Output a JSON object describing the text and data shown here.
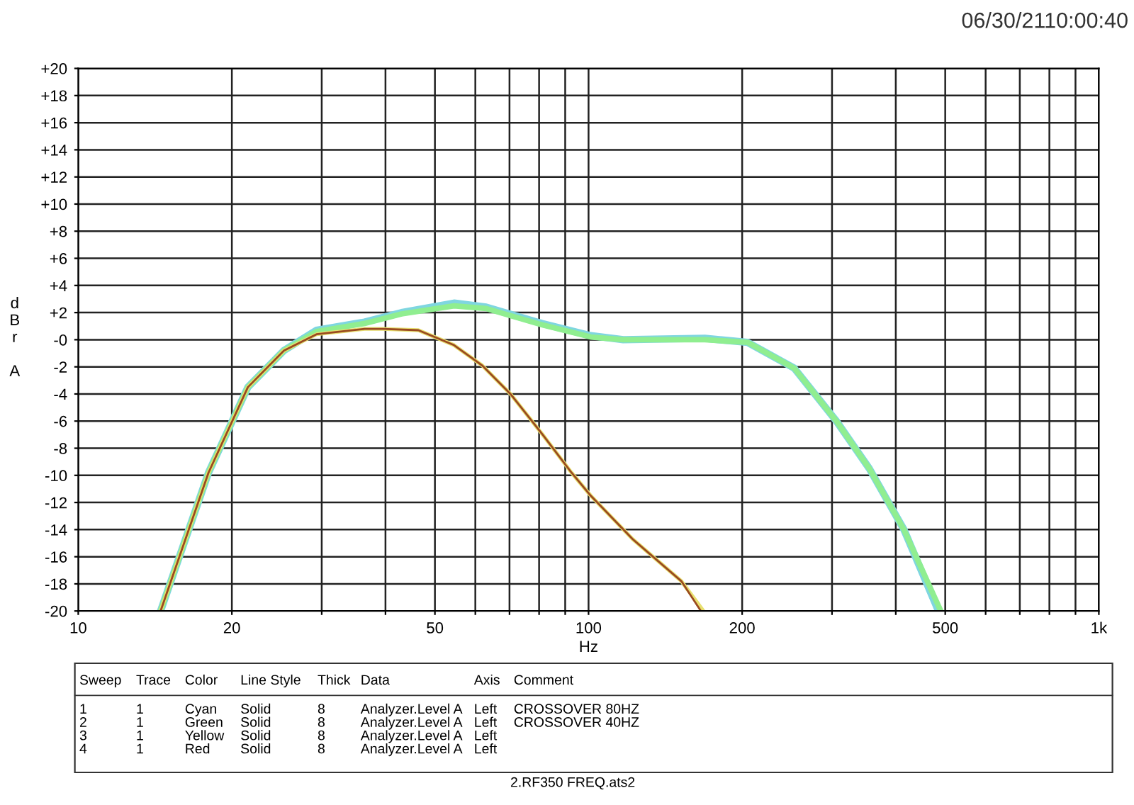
{
  "chart_data": {
    "type": "line",
    "xlabel": "Hz",
    "ylabel": "dBr A",
    "xlim": [
      10,
      1000
    ],
    "ylim": [
      -20,
      20
    ],
    "log": "x",
    "grid": true,
    "line_style": "solid",
    "xticks": [
      10,
      {
        "value": 20,
        "label": "20"
      },
      {
        "value": 30,
        "label": null
      },
      {
        "value": 40,
        "label": null
      },
      50,
      {
        "value": 60,
        "label": null
      },
      {
        "value": 70,
        "label": null
      },
      {
        "value": 80,
        "label": null
      },
      {
        "value": 90,
        "label": null
      },
      100,
      200,
      {
        "value": 300,
        "label": null
      },
      {
        "value": 400,
        "label": null
      },
      500,
      {
        "value": 600,
        "label": null
      },
      {
        "value": 700,
        "label": null
      },
      {
        "value": 800,
        "label": null
      },
      {
        "value": 900,
        "label": null
      },
      {
        "value": 1000,
        "label": "1k"
      }
    ],
    "yticks": [
      {
        "value": 20,
        "label": "+20"
      },
      {
        "value": 18,
        "label": "+18"
      },
      {
        "value": 16,
        "label": "+16"
      },
      {
        "value": 14,
        "label": "+14"
      },
      {
        "value": 12,
        "label": "+12"
      },
      {
        "value": 10,
        "label": "+10"
      },
      {
        "value": 8,
        "label": "+8"
      },
      {
        "value": 6,
        "label": "+6"
      },
      {
        "value": 4,
        "label": "+4"
      },
      {
        "value": 2,
        "label": "+2"
      },
      {
        "value": 0,
        "label": "-0"
      },
      -2,
      -4,
      -6,
      -8,
      -10,
      -12,
      -14,
      -16,
      -18,
      -20
    ],
    "series": [
      {
        "color": "#7fd6e0",
        "x": [
          14.5,
          18.0,
          21.5,
          25.3,
          29.3,
          36.4,
          43,
          54.5,
          63,
          81,
          101,
          117,
          169,
          205,
          253,
          306,
          355,
          415,
          485
        ],
        "values": [
          -20,
          -9.8,
          -3.5,
          -0.8,
          0.7,
          1.3,
          2.0,
          2.7,
          2.4,
          1.2,
          0.3,
          0,
          0.1,
          -0.2,
          -2.1,
          -6.0,
          -9.5,
          -14.0,
          -20
        ]
      },
      {
        "color": "#90ee90",
        "x": [
          14.5,
          18.0,
          21.5,
          25.3,
          29.3,
          36.4,
          43,
          54.5,
          63,
          81,
          101,
          117,
          169,
          205,
          253,
          306,
          355,
          415,
          490
        ],
        "values": [
          -20,
          -9.8,
          -3.5,
          -0.8,
          0.6,
          1.2,
          1.9,
          2.5,
          2.3,
          1.1,
          0.2,
          0,
          0,
          -0.2,
          -2.1,
          -6.0,
          -9.5,
          -14.0,
          -20
        ]
      },
      {
        "color": "#e8e070",
        "x": [
          14.5,
          18.0,
          21.5,
          25.3,
          29.3,
          36.4,
          39.5,
          46.4,
          54.5,
          61.9,
          70.3,
          81.3,
          92.6,
          101,
          122,
          152,
          168
        ],
        "values": [
          -20,
          -9.8,
          -3.5,
          -0.8,
          0.4,
          0.8,
          0.8,
          0.7,
          -0.4,
          -1.9,
          -4.0,
          -7.0,
          -9.8,
          -11.5,
          -14.7,
          -17.8,
          -20
        ]
      },
      {
        "color": "#9a4a20",
        "x": [
          14.5,
          18.0,
          21.5,
          25.3,
          29.3,
          36.4,
          39.5,
          46.4,
          54.5,
          61.9,
          70.3,
          81.3,
          92.6,
          101,
          122,
          152,
          166
        ],
        "values": [
          -20,
          -9.8,
          -3.5,
          -0.8,
          0.4,
          0.8,
          0.8,
          0.7,
          -0.4,
          -1.9,
          -4.0,
          -7.0,
          -9.8,
          -11.5,
          -14.7,
          -17.8,
          -20
        ]
      }
    ],
    "annotations": [
      "06/30/2110:00:40",
      "Sweep\tTrace\tColor\tLine Style\tThick\tData\tAxis\tComment",
      "1\t1\tCyan\tSolid\t8\tAnalyzer.Level A\tLeft\tCROSSOVER 80HZ",
      "2\t1\tGreen\tSolid\t8\tAnalyzer.Level A\tLeft\tCROSSOVER 40HZ",
      "3\t1\tYellow\tSolid\t8\tAnalyzer.Level A\tLeft",
      "4\t1\tRed\tSolid\t8\tAnalyzer.Level A\tLeft",
      "2.RF350 FREQ.ats2"
    ]
  }
}
